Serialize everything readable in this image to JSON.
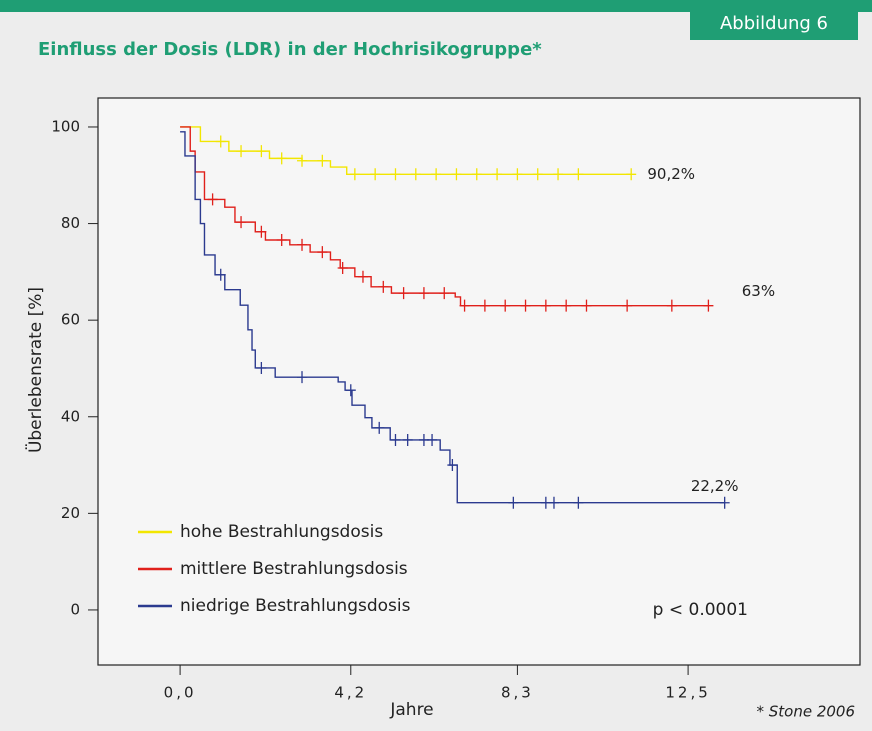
{
  "chart_data": {
    "type": "step",
    "badge": "Abbildung 6",
    "title": "Einfluss der Dosis (LDR) in der Hochrisikogruppe*",
    "xlabel": "Jahre",
    "ylabel": "Überlebensrate [%]",
    "xlim": [
      -2.02,
      16.73
    ],
    "ylim": [
      -11.4,
      106.0
    ],
    "xticks": [
      {
        "value": 0,
        "label": "0,0"
      },
      {
        "value": 4.2,
        "label": "4,2"
      },
      {
        "value": 8.3,
        "label": "8,3"
      },
      {
        "value": 12.5,
        "label": "12,5"
      }
    ],
    "yticks": [
      0,
      20,
      40,
      60,
      80,
      100
    ],
    "legend": "lower left",
    "pvalue": "p < 0.0001",
    "source": "* Stone 2006",
    "series": [
      {
        "name": "hohe Bestrahlungsdosis",
        "color": "#f2e600",
        "end_label": "90,2%",
        "x": [
          0,
          0.5,
          1.2,
          2.2,
          3.0,
          3.7,
          4.1,
          11.1
        ],
        "values": [
          100,
          97,
          95,
          93.5,
          93,
          91.7,
          90.2,
          90.2
        ],
        "censored": [
          1.0,
          1.5,
          2.0,
          2.5,
          3.0,
          3.5,
          4.3,
          4.8,
          5.3,
          5.8,
          6.3,
          6.8,
          7.3,
          7.8,
          8.3,
          8.8,
          9.3,
          9.8,
          11.1
        ]
      },
      {
        "name": "mittlere Bestrahlungsdosis",
        "color": "#e0201b",
        "end_label": "63%",
        "x": [
          0,
          0.25,
          0.37,
          0.6,
          1.1,
          1.35,
          1.85,
          2.1,
          2.7,
          3.2,
          3.7,
          3.94,
          4.3,
          4.7,
          5.2,
          6.77,
          6.9,
          13.0
        ],
        "values": [
          100,
          95,
          90.7,
          85,
          83.4,
          80.3,
          78.3,
          76.6,
          75.6,
          74.1,
          72.5,
          70.8,
          69,
          66.9,
          65.6,
          64.8,
          63,
          63
        ],
        "censored": [
          0.8,
          1.5,
          2.0,
          2.5,
          3.0,
          3.5,
          4.0,
          4.5,
          5.0,
          5.5,
          6.0,
          6.5,
          7.0,
          7.5,
          8.0,
          8.5,
          9.0,
          9.5,
          10.0,
          11.0,
          12.1,
          13.0
        ]
      },
      {
        "name": "niedrige Bestrahlungsdosis",
        "color": "#2b3a8f",
        "end_label": "22,2%",
        "x": [
          0,
          0.12,
          0.37,
          0.5,
          0.6,
          0.86,
          1.1,
          1.48,
          1.67,
          1.77,
          1.85,
          2.34,
          3.89,
          4.06,
          4.23,
          4.55,
          4.72,
          5.17,
          6.4,
          6.64,
          6.82,
          13.4
        ],
        "values": [
          99,
          94,
          85,
          80,
          73.5,
          69.4,
          66.3,
          63.1,
          58,
          53.8,
          50.1,
          48.2,
          47.2,
          45.5,
          42.4,
          39.8,
          37.7,
          35.2,
          33.1,
          30,
          22.2,
          22.2
        ],
        "censored": [
          1.0,
          2.0,
          3.0,
          4.2,
          4.9,
          5.3,
          5.6,
          6.0,
          6.2,
          6.7,
          8.2,
          9.0,
          9.2,
          9.8,
          13.4
        ]
      }
    ]
  }
}
